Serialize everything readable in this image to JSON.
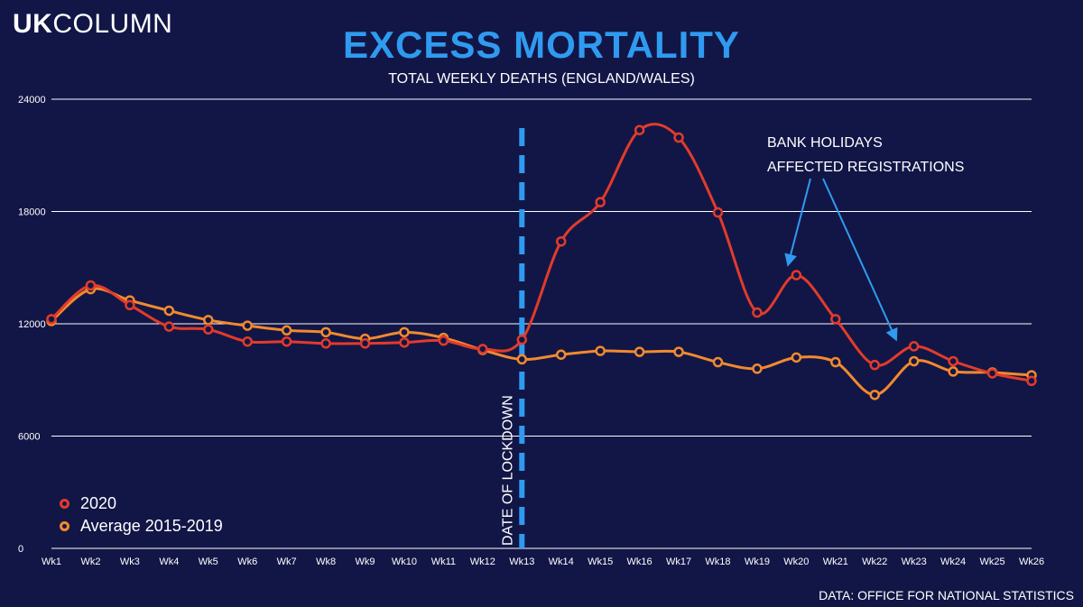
{
  "logo": {
    "bold": "UK",
    "regular": "COLUMN"
  },
  "source": "DATA: OFFICE FOR NATIONAL STATISTICS",
  "chart_data": {
    "type": "line",
    "title": "EXCESS MORTALITY",
    "subtitle": "TOTAL WEEKLY DEATHS (ENGLAND/WALES)",
    "categories": [
      "Wk1",
      "Wk2",
      "Wk3",
      "Wk4",
      "Wk5",
      "Wk6",
      "Wk7",
      "Wk8",
      "Wk9",
      "Wk10",
      "Wk11",
      "Wk12",
      "Wk13",
      "Wk14",
      "Wk15",
      "Wk16",
      "Wk17",
      "Wk18",
      "Wk19",
      "Wk20",
      "Wk21",
      "Wk22",
      "Wk23",
      "Wk24",
      "Wk25",
      "Wk26"
    ],
    "yticks": [
      0,
      6000,
      12000,
      18000,
      24000
    ],
    "ylim": [
      0,
      24000
    ],
    "grid": true,
    "legend_position": "bottom-left",
    "series": [
      {
        "name": "2020",
        "color": "#e23b2b",
        "values": [
          12250,
          14050,
          13000,
          11850,
          11700,
          11050,
          11050,
          10950,
          10950,
          11000,
          11100,
          10650,
          11150,
          16400,
          18500,
          22350,
          21950,
          17950,
          12600,
          14600,
          12250,
          9800,
          10800,
          10000,
          9350,
          8950
        ]
      },
      {
        "name": "Average 2015-2019",
        "color": "#f28a2e",
        "values": [
          12150,
          13850,
          13250,
          12700,
          12200,
          11900,
          11650,
          11550,
          11200,
          11550,
          11250,
          10600,
          10100,
          10350,
          10550,
          10500,
          10500,
          9950,
          9600,
          10200,
          9950,
          8200,
          10000,
          9450,
          9400,
          9250
        ]
      }
    ],
    "annotations": {
      "lockdown_label": "DATE OF LOCKDOWN",
      "lockdown_at": "Wk13",
      "note_line1": "BANK HOLIDAYS",
      "note_line2": "AFFECTED REGISTRATIONS",
      "note_points_to": [
        "Wk20",
        "Wk23"
      ]
    }
  }
}
